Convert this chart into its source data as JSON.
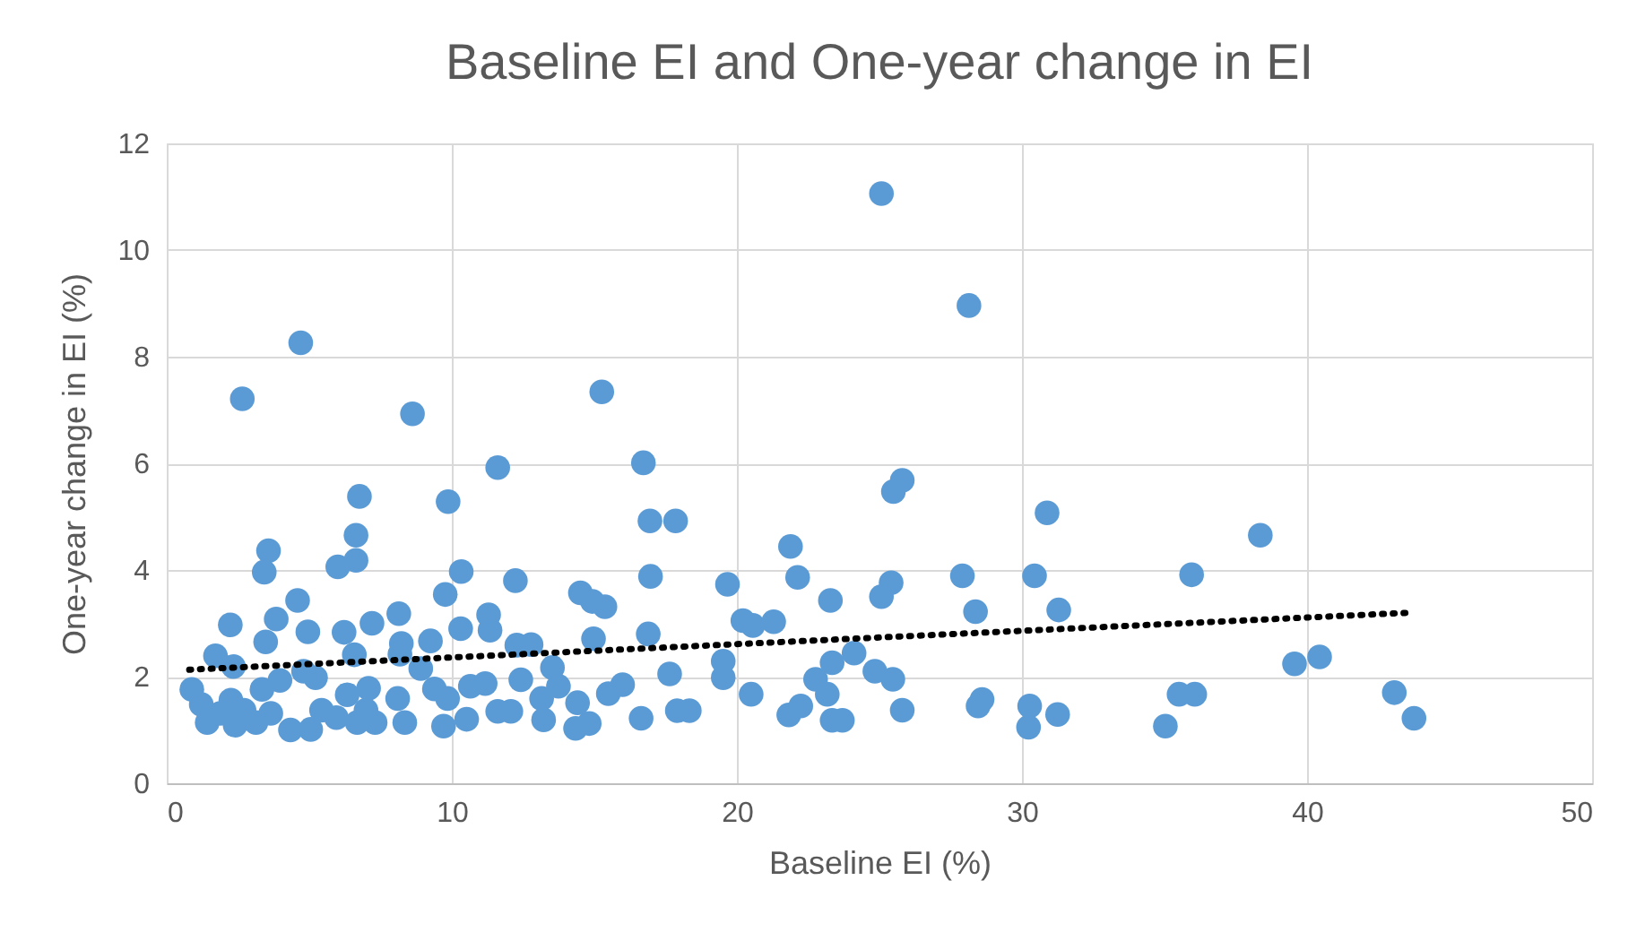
{
  "chart_data": {
    "type": "scatter",
    "title": "Baseline EI and One-year change in EI",
    "xlabel": "Baseline EI (%)",
    "ylabel": "One-year change in EI (%)",
    "xlim": [
      0,
      50
    ],
    "xticks": [
      0,
      10,
      20,
      30,
      40,
      50
    ],
    "ylim": [
      0,
      12
    ],
    "yticks": [
      0,
      2,
      4,
      6,
      8,
      10,
      12
    ],
    "grid": true,
    "marker": "circle",
    "series": [
      {
        "color": "#5b9bd5",
        "x": [
          2.65,
          4.7,
          8.62,
          15.26,
          11.61,
          16.72,
          6.76,
          9.87,
          16.95,
          17.85,
          3.57,
          3.42,
          6.64,
          6.64,
          6.0,
          10.33,
          12.23,
          16.97,
          4.59,
          9.77,
          14.51,
          14.93,
          15.37,
          2.23,
          3.84,
          4.95,
          6.22,
          7.2,
          8.14,
          8.23,
          9.25,
          10.31,
          11.29,
          11.34,
          12.28,
          12.78,
          14.97,
          16.89,
          3.47,
          1.71,
          2.34,
          17.64,
          6.58,
          8.18,
          8.91,
          13.53,
          12.42,
          0.88,
          1.21,
          2.25,
          3.34,
          3.97,
          4.8,
          5.22,
          7.08,
          6.33,
          9.39,
          9.85,
          10.65,
          11.17,
          13.74,
          15.99,
          15.49,
          13.15,
          14.41,
          8.1,
          1.42,
          2.4,
          3.13,
          4.34,
          5.05,
          5.95,
          6.99,
          7.31,
          8.35,
          9.71,
          10.52,
          11.61,
          12.07,
          13.22,
          14.34,
          14.82,
          16.64,
          17.91,
          18.33,
          1.88,
          2.71,
          3.65,
          5.43,
          6.68,
          25.07,
          28.14,
          25.8,
          25.49,
          30.88,
          21.88,
          22.13,
          19.67,
          23.28,
          27.91,
          30.44,
          28.37,
          31.29,
          25.41,
          25.07,
          20.21,
          20.56,
          21.29,
          19.52,
          19.52,
          20.5,
          24.11,
          23.34,
          22.76,
          23.17,
          24.84,
          25.47,
          25.8,
          21.82,
          22.24,
          23.34,
          23.7,
          28.6,
          28.46,
          30.27,
          30.23,
          31.25,
          38.36,
          35.95,
          39.56,
          40.44,
          35.51,
          36.06,
          35.03,
          43.06,
          43.75
        ],
        "values": [
          7.21,
          8.26,
          6.93,
          7.34,
          5.92,
          6.01,
          5.38,
          5.28,
          4.92,
          4.92,
          4.36,
          3.96,
          4.65,
          4.18,
          4.06,
          3.97,
          3.8,
          3.88,
          3.43,
          3.54,
          3.57,
          3.41,
          3.31,
          2.97,
          3.08,
          2.84,
          2.83,
          3.0,
          3.18,
          2.62,
          2.67,
          2.9,
          3.16,
          2.87,
          2.59,
          2.6,
          2.71,
          2.8,
          2.65,
          2.39,
          2.19,
          2.05,
          2.41,
          2.42,
          2.15,
          2.17,
          1.94,
          1.76,
          1.48,
          1.56,
          1.76,
          1.93,
          2.1,
          1.98,
          1.78,
          1.66,
          1.77,
          1.59,
          1.82,
          1.87,
          1.82,
          1.85,
          1.68,
          1.59,
          1.51,
          1.59,
          1.14,
          1.09,
          1.14,
          1.0,
          1.01,
          1.23,
          1.37,
          1.14,
          1.14,
          1.07,
          1.2,
          1.35,
          1.35,
          1.19,
          1.03,
          1.12,
          1.22,
          1.36,
          1.36,
          1.31,
          1.37,
          1.31,
          1.37,
          1.14,
          11.06,
          8.96,
          5.68,
          5.47,
          5.07,
          4.44,
          3.86,
          3.73,
          3.43,
          3.89,
          3.89,
          3.22,
          3.25,
          3.76,
          3.5,
          3.05,
          2.96,
          3.03,
          2.29,
          1.98,
          1.67,
          2.44,
          2.26,
          1.95,
          1.67,
          2.1,
          1.95,
          1.37,
          1.28,
          1.45,
          1.18,
          1.18,
          1.57,
          1.45,
          1.45,
          1.05,
          1.29,
          4.65,
          3.91,
          2.24,
          2.37,
          1.67,
          1.67,
          1.07,
          1.7,
          1.22
        ]
      },
      {
        "type": "line",
        "color": "#000000",
        "line_style": "dotted",
        "marker": "none",
        "x": [
          0.79,
          43.65
        ],
        "values": [
          2.13,
          3.2
        ]
      }
    ]
  }
}
